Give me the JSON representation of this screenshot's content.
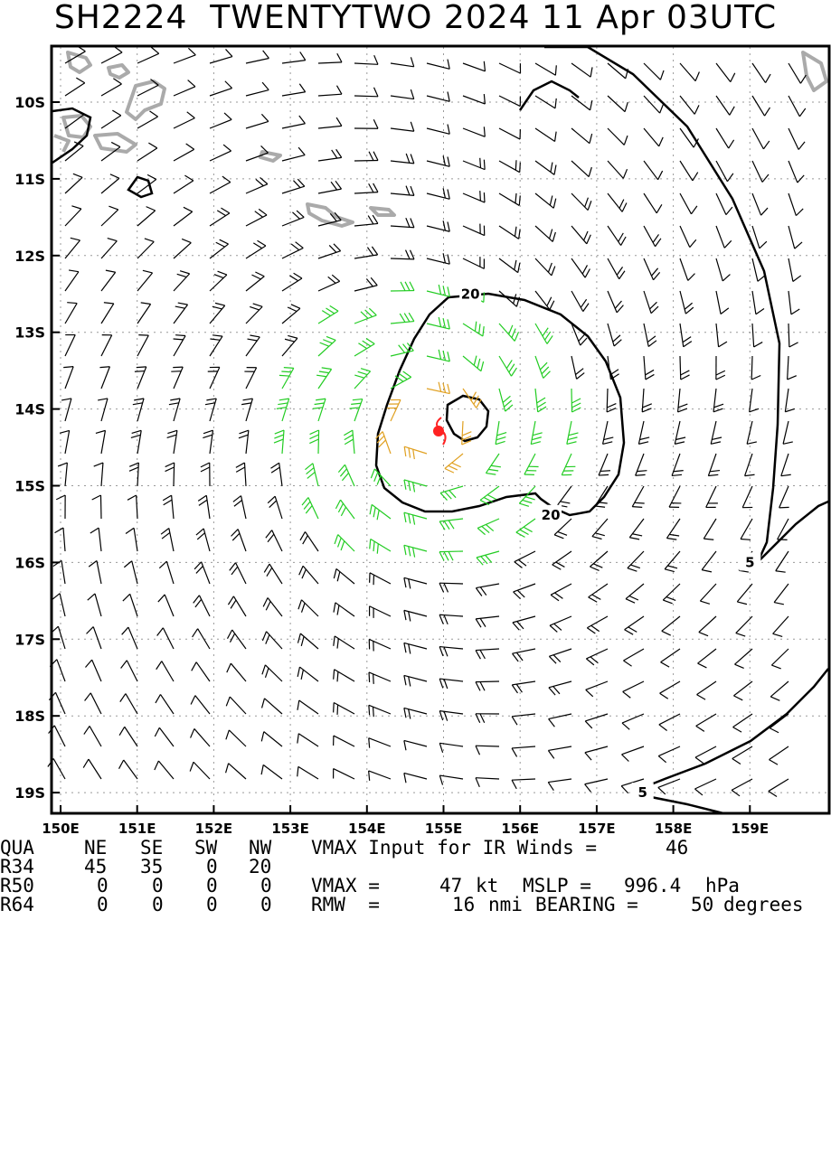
{
  "title": "SH2224  TWENTYTWO 2024 11 Apr 03UTC",
  "chart_data": {
    "type": "wind_field_map",
    "storm_id": "SH2224",
    "storm_name": "TWENTYTWO",
    "date": "2024 11 Apr 03UTC",
    "storm_center": {
      "lon": 154.8,
      "lat": -14.25
    },
    "x_ticks": [
      "150E",
      "151E",
      "152E",
      "153E",
      "154E",
      "155E",
      "156E",
      "157E",
      "158E",
      "159E"
    ],
    "x_tick_values": [
      150,
      151,
      152,
      153,
      154,
      155,
      156,
      157,
      158,
      159
    ],
    "y_ticks": [
      "10S",
      "11S",
      "12S",
      "13S",
      "14S",
      "15S",
      "16S",
      "17S",
      "18S",
      "19S"
    ],
    "y_tick_values": [
      -10,
      -11,
      -12,
      -13,
      -14,
      -15,
      -16,
      -17,
      -18,
      -19
    ],
    "xlim": [
      150,
      159.9
    ],
    "ylim": [
      -19.3,
      -9.35
    ],
    "grid": "dotted",
    "contour_labels": [
      {
        "text": "20",
        "lon": 155.35,
        "lat": -12.5
      },
      {
        "text": "20",
        "lon": 156.4,
        "lat": -15.38
      },
      {
        "text": "5",
        "lon": 159.0,
        "lat": -16.0
      },
      {
        "text": "5",
        "lon": 157.6,
        "lat": -19.0
      }
    ],
    "colors": {
      "gale": "#22cc22",
      "strong": "#e0a020",
      "center": "#ff2222",
      "coast": "#aaaaaa",
      "barb": "#000000"
    }
  },
  "table": {
    "header": [
      "QUA",
      "NE",
      "SE",
      "SW",
      "NW"
    ],
    "rows": [
      [
        "R34",
        "45",
        "35",
        "0",
        "20"
      ],
      [
        "R50",
        "0",
        "0",
        "0",
        "0"
      ],
      [
        "R64",
        "0",
        "0",
        "0",
        "0"
      ]
    ]
  },
  "vmax_input_label": "VMAX Input for IR Winds =",
  "vmax_input_value": "46",
  "vmax_label": "VMAX =",
  "vmax_value": "47",
  "vmax_unit": "kt",
  "mslp_label": "MSLP =",
  "mslp_value": "996.4",
  "mslp_unit": "hPa",
  "rmw_label": "RMW  =",
  "rmw_value": "16",
  "rmw_unit": "nmi",
  "bearing_label": "BEARING =",
  "bearing_value": "50",
  "bearing_unit": "degrees"
}
